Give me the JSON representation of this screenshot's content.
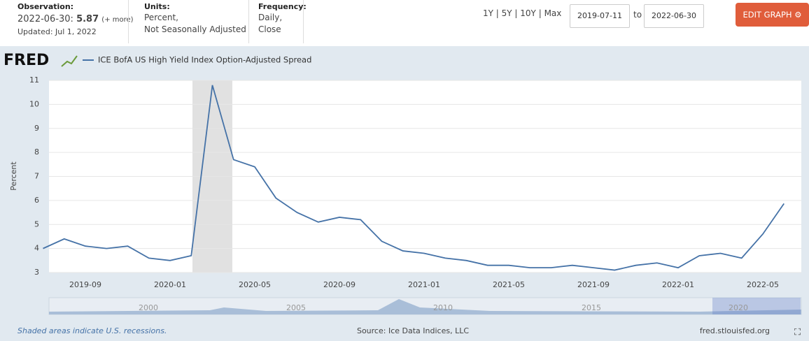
{
  "header": {
    "observation_label": "Observation:",
    "observation_date": "2022-06-30:",
    "observation_value": "5.87",
    "more": "(+ more)",
    "updated": "Updated: Jul 1, 2022",
    "units_label": "Units:",
    "units_1": "Percent,",
    "units_2": "Not Seasonally Adjusted",
    "frequency_label": "Frequency:",
    "frequency_1": "Daily,",
    "frequency_2": "Close",
    "ranges": [
      "1Y",
      "5Y",
      "10Y",
      "Max"
    ],
    "date_start": "2019-07-11",
    "to": "to",
    "date_end": "2022-06-30",
    "edit": "EDIT GRAPH"
  },
  "logo": "FRED",
  "chart_data": {
    "type": "line",
    "y_label": "Percent",
    "categories": [
      null,
      null,
      "2019-09",
      null,
      null,
      null,
      "2020-01",
      null,
      null,
      null,
      "2020-05",
      null,
      null,
      null,
      "2020-09",
      null,
      null,
      null,
      "2021-01",
      null,
      null,
      null,
      "2021-05",
      null,
      null,
      null,
      "2021-09",
      null,
      null,
      null,
      "2022-01",
      null,
      null,
      null,
      "2022-05",
      null
    ],
    "series": [
      {
        "name": "ICE BofA US High Yield Index Option-Adjusted Spread",
        "color": "#4572a7",
        "values": [
          4.0,
          4.4,
          4.1,
          4.0,
          4.1,
          3.6,
          3.5,
          3.7,
          10.8,
          7.7,
          7.4,
          6.1,
          5.5,
          5.1,
          5.3,
          5.2,
          4.3,
          3.9,
          3.8,
          3.6,
          3.5,
          3.3,
          3.3,
          3.2,
          3.2,
          3.3,
          3.2,
          3.1,
          3.3,
          3.4,
          3.2,
          3.7,
          3.8,
          3.6,
          4.6,
          5.87
        ]
      }
    ],
    "ylim": [
      3,
      11
    ],
    "yticks": [
      3,
      4,
      5,
      6,
      7,
      8,
      9,
      10,
      11
    ],
    "grid": true
  },
  "navigator_labels": [
    "2000",
    "2005",
    "2010",
    "2015",
    "2020"
  ],
  "footer": {
    "recession_note": "Shaded areas indicate U.S. recessions.",
    "source": "Source: Ice Data Indices, LLC",
    "site": "fred.stlouisfed.org"
  }
}
